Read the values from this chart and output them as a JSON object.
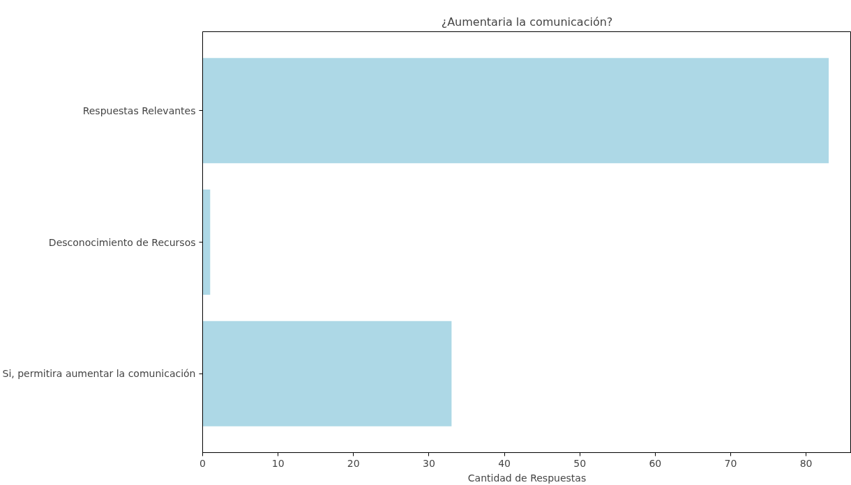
{
  "chart_data": {
    "type": "bar",
    "orientation": "horizontal",
    "title": "¿Aumentaria la comunicación?",
    "xlabel": "Cantidad de Respuestas",
    "categories": [
      "Respuestas Relevantes",
      "Desconocimiento de Recursos",
      "Si, permitira aumentar la comunicación"
    ],
    "values": [
      83,
      1,
      33
    ],
    "color": "#add8e6",
    "xlim": [
      0,
      86
    ],
    "xticks": [
      0,
      10,
      20,
      30,
      40,
      50,
      60,
      70,
      80
    ],
    "grid": false
  }
}
